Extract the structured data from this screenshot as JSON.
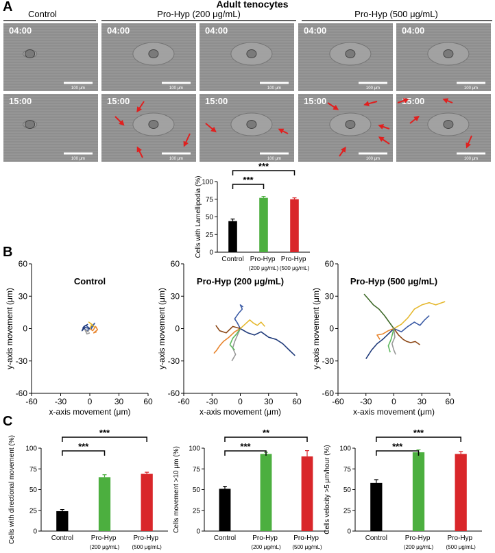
{
  "figure": {
    "panels": [
      "A",
      "B",
      "C"
    ],
    "heading": "Adult tenocytes",
    "groups": [
      "Control",
      "Pro-Hyp (200 μg/mL)",
      "Pro-Hyp (500 μg/mL)"
    ],
    "images": [
      {
        "time": "04:00",
        "scale": "100 μm"
      },
      {
        "time": "04:00",
        "scale": "100 μm"
      },
      {
        "time": "04:00",
        "scale": "100 μm"
      },
      {
        "time": "04:00",
        "scale": "100 μm"
      },
      {
        "time": "04:00",
        "scale": "100 μm"
      },
      {
        "time": "15:00",
        "scale": "100 μm"
      },
      {
        "time": "15:00",
        "scale": "100 μm"
      },
      {
        "time": "15:00",
        "scale": "100 μm"
      },
      {
        "time": "15:00",
        "scale": "100 μm"
      },
      {
        "time": "15:00",
        "scale": "100 μm"
      }
    ]
  },
  "chart_data": [
    {
      "type": "bar",
      "ylabel": "Cells with Lamellipodia (%)",
      "categories": [
        "Control",
        "Pro-Hyp (200 μg/mL)",
        "Pro-Hyp (500 μg/mL)"
      ],
      "values": [
        44,
        77,
        75
      ],
      "errors": [
        3,
        2,
        2
      ],
      "colors": [
        "#000000",
        "#4caf3f",
        "#d9262a"
      ],
      "ylim": [
        0,
        100
      ],
      "yticks": [
        0,
        25,
        50,
        75,
        100
      ],
      "annotations": [
        {
          "from": "Control",
          "to": "Pro-Hyp (200 μg/mL)",
          "label": "***"
        },
        {
          "from": "Control",
          "to": "Pro-Hyp (500 μg/mL)",
          "label": "***"
        }
      ]
    },
    {
      "type": "line",
      "title": "Control",
      "xlabel": "x-axis movement  (μm)",
      "ylabel": "y-axis movement  (μm)",
      "xlim": [
        -60,
        60
      ],
      "ylim": [
        -60,
        60
      ],
      "xticks": [
        -60,
        -30,
        0,
        30,
        60
      ],
      "yticks": [
        -60,
        -30,
        0,
        30,
        60
      ],
      "series": [
        {
          "color": "#3b5ba5",
          "x": [
            0,
            -4,
            -7,
            -3,
            2,
            5,
            1
          ],
          "y": [
            0,
            3,
            1,
            -2,
            2,
            5,
            -1
          ]
        },
        {
          "color": "#e8842c",
          "x": [
            0,
            3,
            6,
            8,
            4,
            7
          ],
          "y": [
            0,
            -2,
            2,
            -1,
            -4,
            -3
          ]
        },
        {
          "color": "#999999",
          "x": [
            0,
            -2,
            -5,
            -3,
            0
          ],
          "y": [
            0,
            -3,
            -1,
            -5,
            -4
          ]
        },
        {
          "color": "#e5b82e",
          "x": [
            0,
            2,
            -1,
            3,
            5
          ],
          "y": [
            0,
            4,
            6,
            3,
            1
          ]
        },
        {
          "color": "#1f3a7a",
          "x": [
            0,
            -5,
            -8,
            -6,
            -2
          ],
          "y": [
            0,
            1,
            -2,
            2,
            4
          ]
        }
      ]
    },
    {
      "type": "line",
      "title": "Pro-Hyp (200 μg/mL)",
      "xlabel": "x-axis movement  (μm)",
      "ylabel": "y-axis movement  (μm)",
      "xlim": [
        -60,
        60
      ],
      "ylim": [
        -60,
        60
      ],
      "xticks": [
        -60,
        -30,
        0,
        30,
        60
      ],
      "yticks": [
        -60,
        -30,
        0,
        30,
        60
      ],
      "series": [
        {
          "color": "#1f3a7a",
          "x": [
            0,
            8,
            15,
            22,
            30,
            38,
            45,
            52,
            58
          ],
          "y": [
            0,
            -4,
            -6,
            -3,
            -8,
            -10,
            -14,
            -20,
            -25
          ]
        },
        {
          "color": "#3b5ba5",
          "x": [
            0,
            -3,
            -6,
            -2,
            2,
            0,
            3
          ],
          "y": [
            0,
            5,
            9,
            14,
            18,
            22,
            20
          ]
        },
        {
          "color": "#e8842c",
          "x": [
            0,
            -6,
            -12,
            -18,
            -22,
            -25,
            -28
          ],
          "y": [
            0,
            -3,
            -8,
            -12,
            -16,
            -20,
            -23
          ]
        },
        {
          "color": "#e5b82e",
          "x": [
            0,
            5,
            10,
            14,
            18,
            22,
            26
          ],
          "y": [
            0,
            4,
            8,
            5,
            3,
            6,
            2
          ]
        },
        {
          "color": "#999999",
          "x": [
            0,
            -3,
            -6,
            -8,
            -5,
            -9
          ],
          "y": [
            0,
            -6,
            -12,
            -18,
            -24,
            -30
          ]
        },
        {
          "color": "#5cb85c",
          "x": [
            0,
            -4,
            -8,
            -11,
            -6
          ],
          "y": [
            0,
            -5,
            -9,
            -15,
            -20
          ]
        },
        {
          "color": "#8b4513",
          "x": [
            0,
            -8,
            -15,
            -22,
            -26
          ],
          "y": [
            0,
            2,
            -4,
            -2,
            3
          ]
        }
      ]
    },
    {
      "type": "line",
      "title": "Pro-Hyp (500 μg/mL)",
      "xlabel": "x-axis movement  (μm)",
      "ylabel": "y-axis movement  (μm)",
      "xlim": [
        -60,
        60
      ],
      "ylim": [
        -60,
        60
      ],
      "xticks": [
        -60,
        -30,
        0,
        30,
        60
      ],
      "yticks": [
        -60,
        -30,
        0,
        30,
        60
      ],
      "series": [
        {
          "color": "#3f6a2a",
          "x": [
            0,
            -5,
            -10,
            -16,
            -22,
            -28,
            -32
          ],
          "y": [
            0,
            6,
            12,
            18,
            22,
            28,
            32
          ]
        },
        {
          "color": "#e5b82e",
          "x": [
            0,
            8,
            15,
            22,
            30,
            38,
            45,
            55
          ],
          "y": [
            0,
            4,
            10,
            18,
            22,
            24,
            22,
            25
          ]
        },
        {
          "color": "#1f3a7a",
          "x": [
            0,
            -6,
            -12,
            -18,
            -24,
            -30
          ],
          "y": [
            0,
            -5,
            -10,
            -14,
            -20,
            -28
          ]
        },
        {
          "color": "#3b5ba5",
          "x": [
            0,
            8,
            15,
            22,
            28,
            33,
            38
          ],
          "y": [
            0,
            -3,
            2,
            6,
            3,
            8,
            12
          ]
        },
        {
          "color": "#8b4513",
          "x": [
            0,
            5,
            10,
            14,
            18,
            23,
            28
          ],
          "y": [
            0,
            -6,
            -10,
            -12,
            -13,
            -12,
            -15
          ]
        },
        {
          "color": "#999999",
          "x": [
            0,
            1,
            -2,
            0,
            2
          ],
          "y": [
            0,
            -8,
            -14,
            -20,
            -24
          ]
        },
        {
          "color": "#e8842c",
          "x": [
            0,
            -6,
            -12,
            -18,
            -15
          ],
          "y": [
            0,
            -2,
            -5,
            -6,
            -10
          ]
        },
        {
          "color": "#5cb85c",
          "x": [
            0,
            -3,
            -6,
            -4
          ],
          "y": [
            0,
            -10,
            -16,
            -22
          ]
        }
      ]
    },
    {
      "type": "bar",
      "ylabel": "Cells with directional movement (%)",
      "categories": [
        "Control",
        "Pro-Hyp (200 μg/mL)",
        "Pro-Hyp (500 μg/mL)"
      ],
      "values": [
        24,
        65,
        69
      ],
      "errors": [
        2,
        3,
        2
      ],
      "colors": [
        "#000000",
        "#4caf3f",
        "#d9262a"
      ],
      "ylim": [
        0,
        100
      ],
      "yticks": [
        0,
        25,
        50,
        75,
        100
      ],
      "annotations": [
        {
          "from": "Control",
          "to": "Pro-Hyp (200 μg/mL)",
          "label": "***"
        },
        {
          "from": "Control",
          "to": "Pro-Hyp (500 μg/mL)",
          "label": "***"
        }
      ]
    },
    {
      "type": "bar",
      "ylabel": "Cells movement >10 μm (%)",
      "categories": [
        "Control",
        "Pro-Hyp (200 μg/mL)",
        "Pro-Hyp (500 μg/mL)"
      ],
      "values": [
        51,
        93,
        90
      ],
      "errors": [
        3,
        2,
        7
      ],
      "colors": [
        "#000000",
        "#4caf3f",
        "#d9262a"
      ],
      "ylim": [
        0,
        100
      ],
      "yticks": [
        0,
        25,
        50,
        75,
        100
      ],
      "annotations": [
        {
          "from": "Control",
          "to": "Pro-Hyp (200 μg/mL)",
          "label": "***"
        },
        {
          "from": "Control",
          "to": "Pro-Hyp (500 μg/mL)",
          "label": "**"
        }
      ]
    },
    {
      "type": "bar",
      "ylabel": "Cells velocity >5 μm/hour (%)",
      "categories": [
        "Control",
        "Pro-Hyp (200 μg/mL)",
        "Pro-Hyp (500 μg/mL)"
      ],
      "values": [
        58,
        95,
        93
      ],
      "errors": [
        4,
        3,
        3
      ],
      "colors": [
        "#000000",
        "#4caf3f",
        "#d9262a"
      ],
      "ylim": [
        0,
        100
      ],
      "yticks": [
        0,
        25,
        50,
        75,
        100
      ],
      "annotations": [
        {
          "from": "Control",
          "to": "Pro-Hyp (200 μg/mL)",
          "label": "***"
        },
        {
          "from": "Control",
          "to": "Pro-Hyp (500 μg/mL)",
          "label": "***"
        }
      ]
    }
  ]
}
